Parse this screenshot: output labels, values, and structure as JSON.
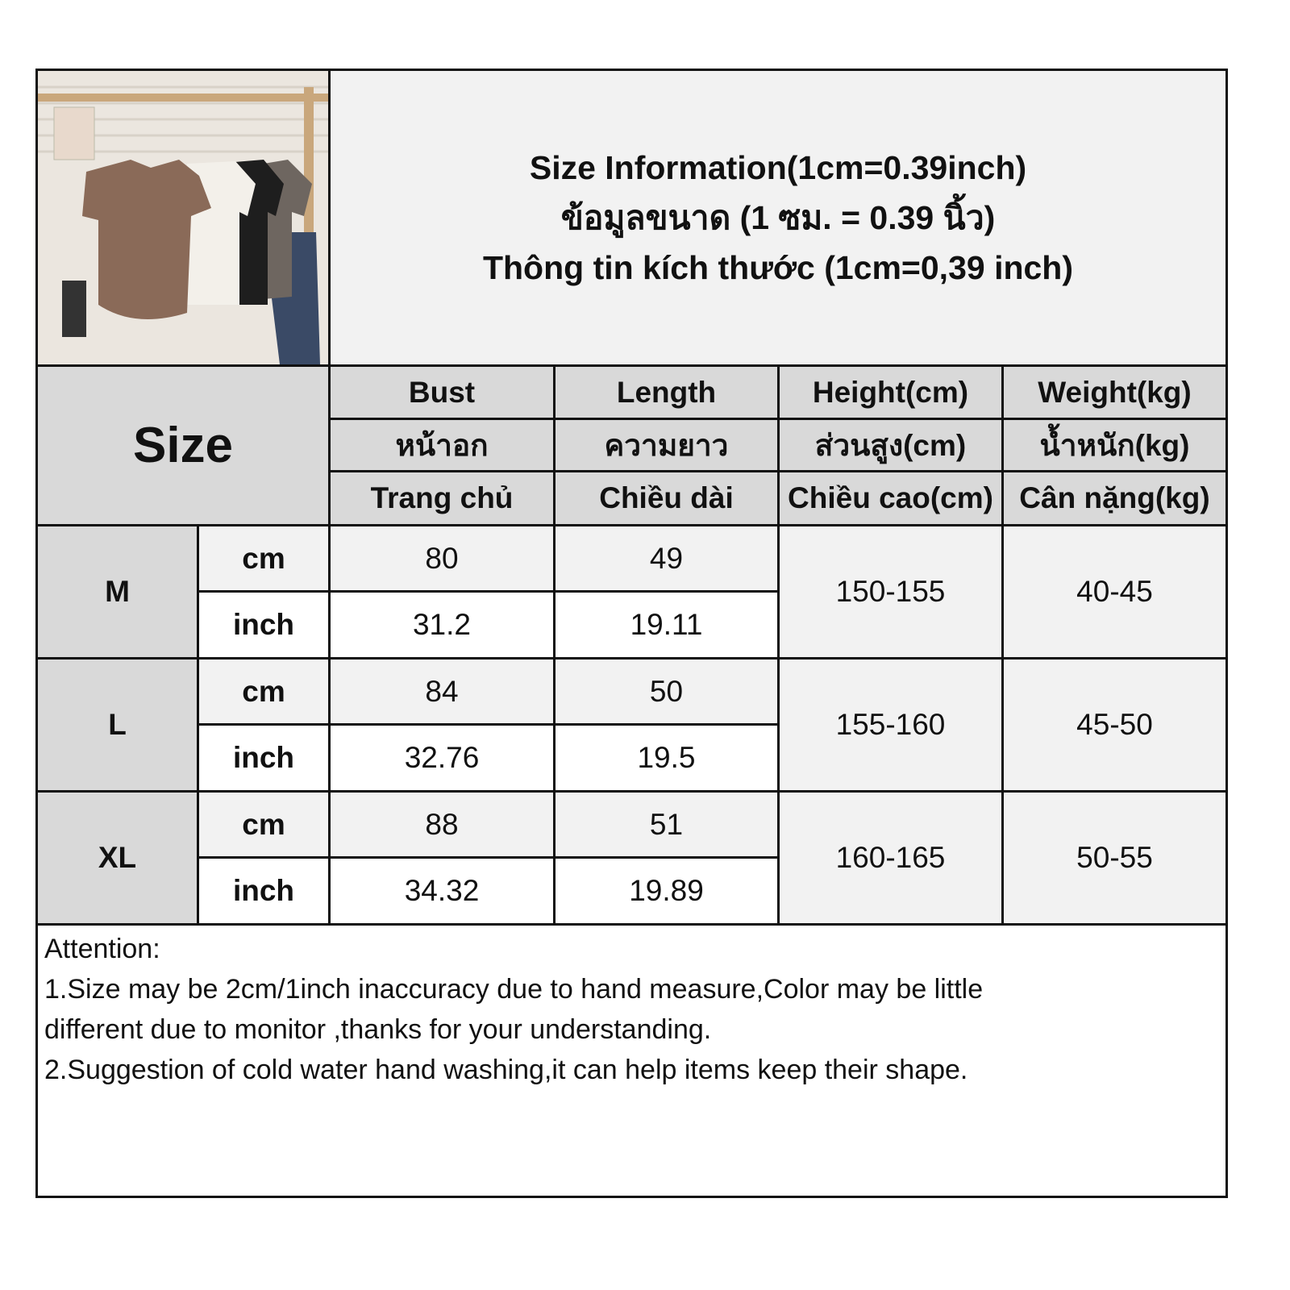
{
  "title": {
    "line1": "Size Information(1cm=0.39inch)",
    "line2": "ข้อมูลขนาด (1 ซม. = 0.39 นิ้ว)",
    "line3": "Thông tin kích thước (1cm=0,39 inch)"
  },
  "header": {
    "size_label": "Size",
    "columns": [
      {
        "en": "Bust",
        "th": "หน้าอก",
        "vi": "Trang chủ"
      },
      {
        "en": "Length",
        "th": "ความยาว",
        "vi": "Chiều dài"
      },
      {
        "en": "Height(cm)",
        "th": "ส่วนสูง(cm)",
        "vi": "Chiều cao(cm)"
      },
      {
        "en": "Weight(kg)",
        "th": "น้ำหนัก(kg)",
        "vi": "Cân nặng(kg)"
      }
    ]
  },
  "rows": [
    {
      "size": "M",
      "cm_label": "cm",
      "inch_label": "inch",
      "bust_cm": "80",
      "length_cm": "49",
      "bust_inch": "31.2",
      "length_inch": "19.11",
      "height": "150-155",
      "weight": "40-45"
    },
    {
      "size": "L",
      "cm_label": "cm",
      "inch_label": "inch",
      "bust_cm": "84",
      "length_cm": "50",
      "bust_inch": "32.76",
      "length_inch": "19.5",
      "height": "155-160",
      "weight": "45-50"
    },
    {
      "size": "XL",
      "cm_label": "cm",
      "inch_label": "inch",
      "bust_cm": "88",
      "length_cm": "51",
      "bust_inch": "34.32",
      "length_inch": "19.89",
      "height": "160-165",
      "weight": "50-55"
    }
  ],
  "notes": {
    "heading": "Attention:",
    "line1": "1.Size may be 2cm/1inch inaccuracy due to hand measure,Color may be little",
    "line2": "different due to monitor ,thanks for your understanding.",
    "line3": "2.Suggestion of cold water hand washing,it can help items keep their shape."
  },
  "colors": {
    "header_bg": "#d9d9d9",
    "light_row_bg": "#f2f2f2",
    "border": "#111111"
  }
}
